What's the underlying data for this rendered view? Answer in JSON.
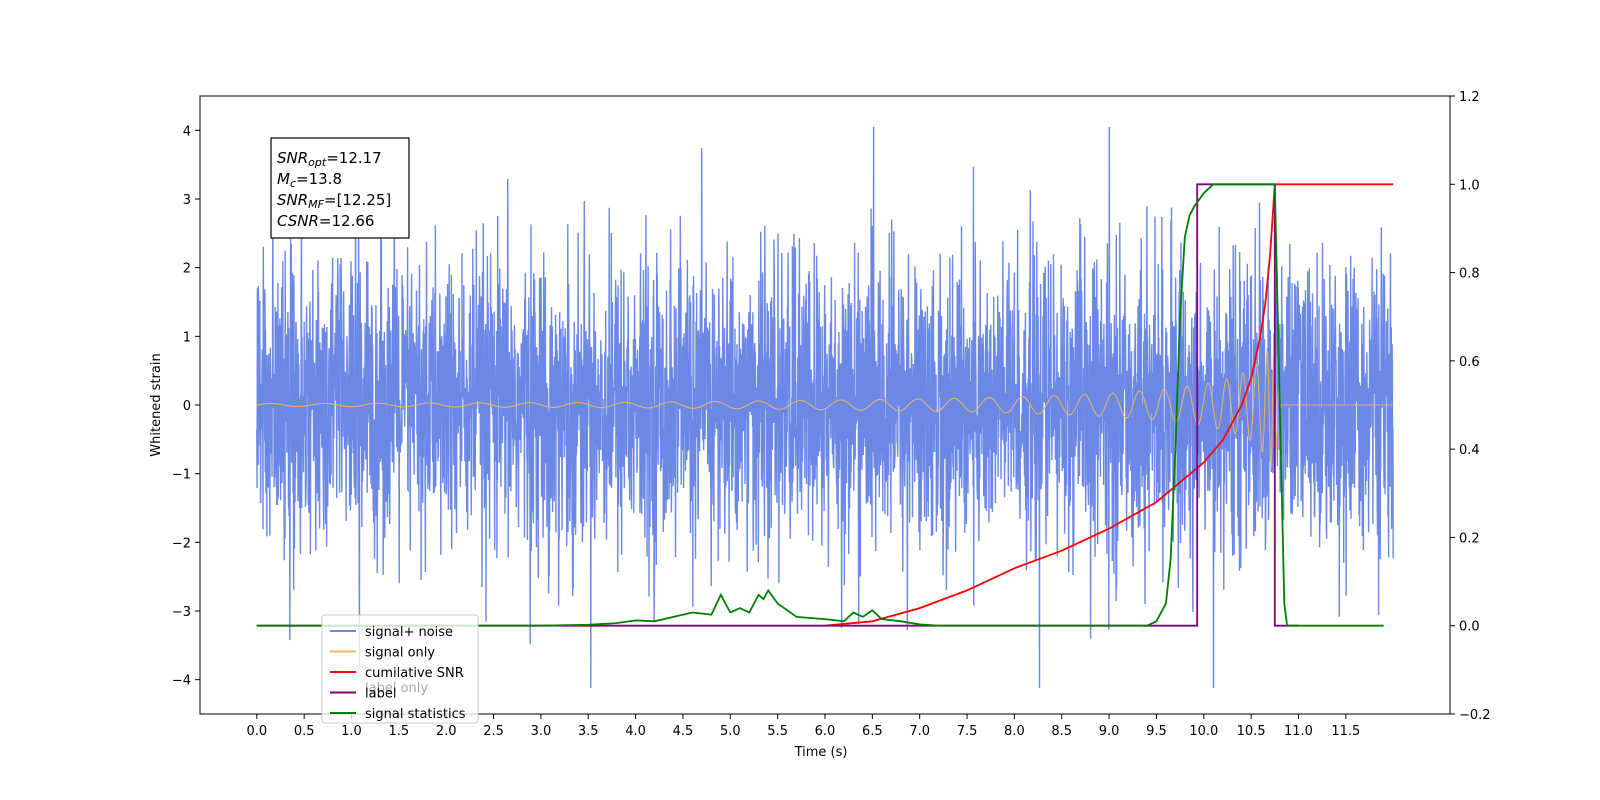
{
  "chart_data": {
    "type": "line",
    "xlabel": "Time (s)",
    "ylabel": "Whitened strain",
    "xlim": [
      -0.6,
      12.6
    ],
    "ylim": [
      -4.5,
      4.5
    ],
    "y2lim": [
      -0.2,
      1.2
    ],
    "x_ticks": [
      "0.0",
      "0.5",
      "1.0",
      "1.5",
      "2.0",
      "2.5",
      "3.0",
      "3.5",
      "4.0",
      "4.5",
      "5.0",
      "5.5",
      "6.0",
      "6.5",
      "7.0",
      "7.5",
      "8.0",
      "8.5",
      "9.0",
      "9.5",
      "10.0",
      "10.5",
      "11.0",
      "11.5"
    ],
    "y_ticks": [
      "−4",
      "−3",
      "−2",
      "−1",
      "0",
      "1",
      "2",
      "3",
      "4"
    ],
    "y2_ticks": [
      "−0.2",
      "0.0",
      "0.2",
      "0.4",
      "0.6",
      "0.8",
      "1.0",
      "1.2"
    ],
    "legend_position": "lower-left",
    "annotation": {
      "lines": [
        {
          "main": "SNR",
          "sub": "opt",
          "value": "=12.17"
        },
        {
          "main": "M",
          "sub": "c",
          "value": "=13.8"
        },
        {
          "main": "SNR",
          "sub": "MF",
          "value": "=[12.25]"
        },
        {
          "main": "CSNR",
          "sub": "",
          "value": "=12.66"
        }
      ]
    },
    "series": [
      {
        "name": "signal+ noise",
        "color": "#6b88e6",
        "axis": "left",
        "kind": "noise",
        "x_range": [
          0.0,
          12.0
        ],
        "amplitude_std": 1.05,
        "peak_max": 4.05,
        "peak_min": -4.12
      },
      {
        "name": "signal only",
        "color": "#f5b85a",
        "axis": "left",
        "kind": "chirp",
        "x_range": [
          0.0,
          12.0
        ],
        "merger_time": 10.75,
        "envelope_x": [
          0.0,
          4.0,
          6.0,
          7.5,
          8.5,
          9.0,
          9.5,
          10.0,
          10.3,
          10.5,
          10.6,
          10.7,
          10.75,
          10.78,
          10.82,
          12.0
        ],
        "envelope_y": [
          0.02,
          0.04,
          0.07,
          0.1,
          0.14,
          0.17,
          0.22,
          0.3,
          0.4,
          0.52,
          0.65,
          0.85,
          1.0,
          0.3,
          0.0,
          0.0
        ]
      },
      {
        "name": "cumilative SNR",
        "color": "#ff0000",
        "axis": "right",
        "kind": "line",
        "x": [
          6.0,
          6.5,
          7.0,
          7.5,
          8.0,
          8.5,
          9.0,
          9.5,
          10.0,
          10.2,
          10.4,
          10.5,
          10.6,
          10.65,
          10.7,
          10.75,
          12.0
        ],
        "y": [
          0.0,
          0.01,
          0.04,
          0.08,
          0.13,
          0.17,
          0.22,
          0.28,
          0.37,
          0.42,
          0.5,
          0.56,
          0.66,
          0.73,
          0.84,
          1.0,
          1.0
        ]
      },
      {
        "name": "label",
        "color": "#800080",
        "axis": "right",
        "kind": "line",
        "x": [
          0.0,
          9.93,
          9.93,
          10.75,
          10.75,
          11.0
        ],
        "y": [
          0.0,
          0.0,
          1.0,
          1.0,
          0.0,
          0.0
        ]
      },
      {
        "name": "label only",
        "color": "#800080",
        "axis": "right",
        "kind": "none",
        "legend_hidden_behind": true
      },
      {
        "name": "signal statistics",
        "color": "#008000",
        "axis": "right",
        "kind": "line",
        "x": [
          0.0,
          3.0,
          3.5,
          3.8,
          4.0,
          4.2,
          4.4,
          4.6,
          4.8,
          4.9,
          5.0,
          5.1,
          5.2,
          5.3,
          5.35,
          5.4,
          5.5,
          5.7,
          6.0,
          6.2,
          6.3,
          6.4,
          6.5,
          6.6,
          6.8,
          7.0,
          7.2,
          9.4,
          9.5,
          9.6,
          9.65,
          9.7,
          9.75,
          9.8,
          9.85,
          9.9,
          10.0,
          10.1,
          10.2,
          10.75,
          10.85,
          10.88,
          11.0,
          11.9
        ],
        "y": [
          0.0,
          0.0,
          0.002,
          0.006,
          0.012,
          0.01,
          0.02,
          0.03,
          0.025,
          0.07,
          0.03,
          0.04,
          0.03,
          0.07,
          0.06,
          0.08,
          0.05,
          0.02,
          0.015,
          0.01,
          0.03,
          0.02,
          0.035,
          0.015,
          0.01,
          0.003,
          0.0,
          0.0,
          0.01,
          0.05,
          0.15,
          0.4,
          0.7,
          0.88,
          0.93,
          0.95,
          0.98,
          1.0,
          1.0,
          1.0,
          0.05,
          0.0,
          0.0,
          0.0
        ]
      }
    ]
  }
}
